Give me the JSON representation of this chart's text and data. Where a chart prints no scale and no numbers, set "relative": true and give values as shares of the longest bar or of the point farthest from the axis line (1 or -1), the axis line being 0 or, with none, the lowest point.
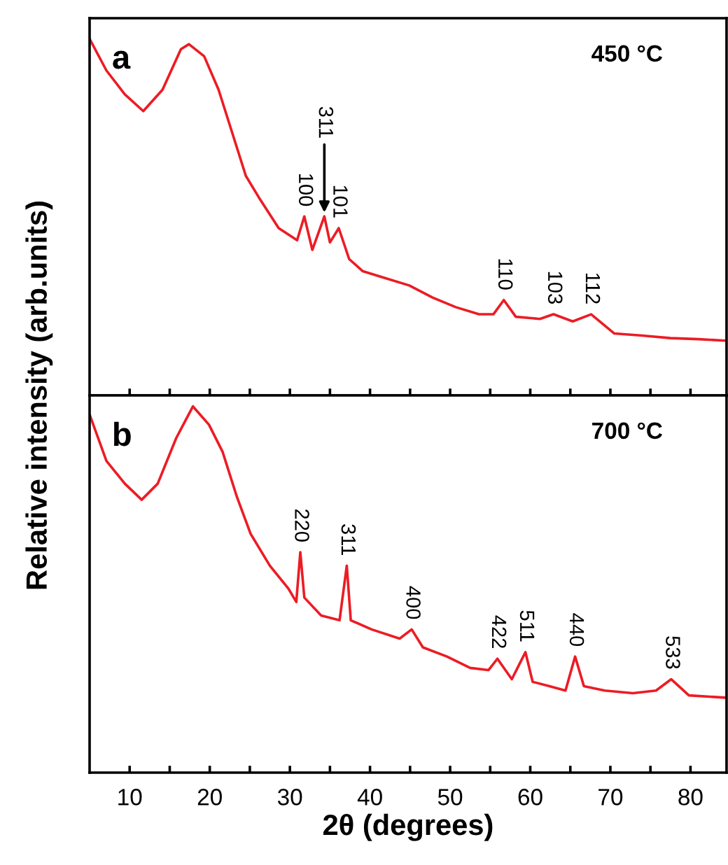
{
  "chart_data": [
    {
      "type": "line",
      "relative": true,
      "xlim": [
        5,
        84.5
      ],
      "xticks": [
        10,
        {
          "value": 15,
          "label": null
        },
        20,
        {
          "value": 25,
          "label": null
        },
        30,
        {
          "value": 35,
          "label": null
        },
        40,
        {
          "value": 45,
          "label": null
        },
        50,
        {
          "value": 55,
          "label": null
        },
        60,
        {
          "value": 65,
          "label": null
        },
        70,
        {
          "value": 75,
          "label": null
        },
        80
      ],
      "tick_labels": false,
      "ylabel": "Relative intensity (arb.units)",
      "grid": false,
      "legend": false,
      "series": [
        {
          "color": "#ec1c24",
          "x": [
            5.05,
            7.1,
            9.4,
            11.7,
            14.1,
            16.4,
            17.4,
            19.3,
            21.1,
            22.8,
            24.5,
            26.3,
            28.6,
            30.9,
            31.8,
            32.8,
            34.3,
            35.0,
            36.1,
            37.4,
            39.1,
            42.0,
            44.9,
            47.8,
            50.7,
            53.6,
            55.4,
            56.7,
            58.2,
            61.2,
            62.9,
            65.3,
            67.6,
            70.5,
            74.0,
            77.5,
            81.0,
            84.2
          ],
          "values": [
            1.0,
            0.913,
            0.846,
            0.799,
            0.859,
            0.973,
            0.987,
            0.953,
            0.859,
            0.738,
            0.617,
            0.55,
            0.47,
            0.436,
            0.503,
            0.409,
            0.503,
            0.43,
            0.47,
            0.383,
            0.349,
            0.329,
            0.309,
            0.275,
            0.248,
            0.228,
            0.228,
            0.268,
            0.221,
            0.215,
            0.228,
            0.208,
            0.228,
            0.174,
            0.168,
            0.161,
            0.158,
            0.154
          ]
        }
      ],
      "annotations": [
        "a",
        "450 °C",
        {
          "text": "100",
          "x": 31.8,
          "y": 0.503
        },
        {
          "text": "311",
          "x": 34.3,
          "y": 0.503
        },
        {
          "text": "101",
          "x": 36.1,
          "y": 0.47
        },
        {
          "text": "110",
          "x": 56.7,
          "y": 0.268
        },
        {
          "text": "103",
          "x": 62.9,
          "y": 0.228
        },
        {
          "text": "112",
          "x": 67.6,
          "y": 0.228
        }
      ]
    },
    {
      "type": "line",
      "relative": true,
      "xlim": [
        5,
        84.5
      ],
      "xticks": [
        10,
        {
          "value": 15,
          "label": null
        },
        20,
        {
          "value": 25,
          "label": null
        },
        30,
        {
          "value": 35,
          "label": null
        },
        40,
        {
          "value": 45,
          "label": null
        },
        50,
        {
          "value": 55,
          "label": null
        },
        60,
        {
          "value": 65,
          "label": null
        },
        70,
        {
          "value": 75,
          "label": null
        },
        80
      ],
      "tick_labels": "x",
      "xlabel": "2θ (degrees)",
      "grid": false,
      "legend": false,
      "series": [
        {
          "color": "#ec1c24",
          "x": [
            5.05,
            7.1,
            9.4,
            11.5,
            13.5,
            15.8,
            17.9,
            19.9,
            21.6,
            23.4,
            25.1,
            27.5,
            29.8,
            30.8,
            31.3,
            31.8,
            33.9,
            36.2,
            37.1,
            37.6,
            40.2,
            43.7,
            45.2,
            46.6,
            49.6,
            52.5,
            54.8,
            55.9,
            57.7,
            59.4,
            60.3,
            62.4,
            64.4,
            65.6,
            66.7,
            69.3,
            72.8,
            75.7,
            77.6,
            79.8,
            84.2
          ],
          "values": [
            0.975,
            0.851,
            0.789,
            0.745,
            0.789,
            0.913,
            1.0,
            0.95,
            0.876,
            0.752,
            0.652,
            0.565,
            0.503,
            0.466,
            0.602,
            0.478,
            0.429,
            0.416,
            0.565,
            0.416,
            0.391,
            0.366,
            0.391,
            0.342,
            0.317,
            0.286,
            0.28,
            0.311,
            0.255,
            0.329,
            0.248,
            0.236,
            0.224,
            0.317,
            0.236,
            0.224,
            0.217,
            0.224,
            0.255,
            0.211,
            0.205
          ]
        }
      ],
      "annotations": [
        "b",
        "700 °C",
        {
          "text": "220",
          "x": 31.3,
          "y": 0.602
        },
        {
          "text": "311",
          "x": 37.1,
          "y": 0.565
        },
        {
          "text": "400",
          "x": 45.2,
          "y": 0.391
        },
        {
          "text": "422",
          "x": 55.9,
          "y": 0.311
        },
        {
          "text": "511",
          "x": 59.4,
          "y": 0.329
        },
        {
          "text": "440",
          "x": 65.6,
          "y": 0.317
        },
        {
          "text": "533",
          "x": 77.6,
          "y": 0.255
        }
      ]
    }
  ]
}
